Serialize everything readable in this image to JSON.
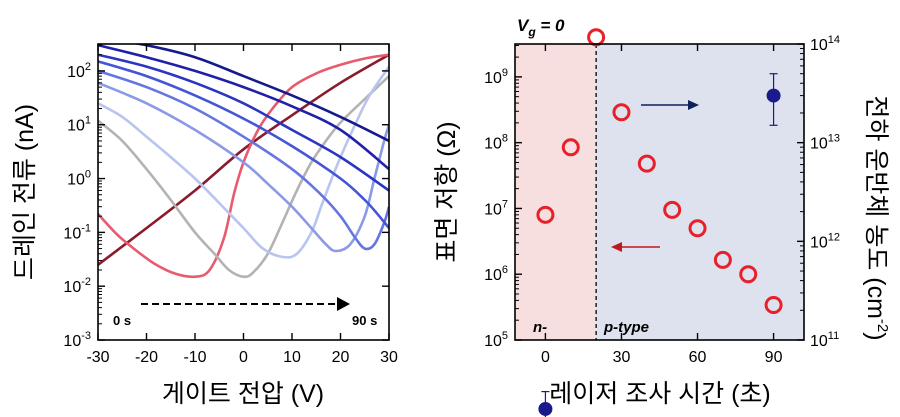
{
  "colors": {
    "n_region": "#f7dfe0",
    "p_region": "#dde2ee",
    "resistance_marker": "#e8202a",
    "density_marker": "#1a1a8c",
    "arrow_red": "#c0181e",
    "arrow_blue": "#10205a"
  },
  "chart_data": [
    {
      "type": "line",
      "title": "",
      "xlabel": "게이트 전압 (V)",
      "ylabel": "드레인 전류 (nA)",
      "xlim": [
        -30,
        30
      ],
      "ylim_log10": [
        -3,
        2.5
      ],
      "xticks": [
        "-30",
        "-20",
        "-10",
        "0",
        "10",
        "20",
        "30"
      ],
      "yticks": [
        {
          "base": "10",
          "exp": "-3",
          "v": -3
        },
        {
          "base": "10",
          "exp": "-2",
          "v": -2
        },
        {
          "base": "10",
          "exp": "-1",
          "v": -1
        },
        {
          "base": "10",
          "exp": "0",
          "v": 0
        },
        {
          "base": "10",
          "exp": "1",
          "v": 1
        },
        {
          "base": "10",
          "exp": "2",
          "v": 2
        }
      ],
      "annotation": {
        "start": "0 s",
        "end": "90 s"
      },
      "series": [
        {
          "color": "#8b1a2a",
          "x": [
            -30,
            -20,
            -10,
            0,
            10,
            20,
            30
          ],
          "y": [
            0.025,
            0.12,
            0.6,
            3.5,
            15,
            60,
            200
          ]
        },
        {
          "color": "#e85a6e",
          "x": [
            -30,
            -26,
            -22,
            -18,
            -14,
            -10,
            -7,
            -4,
            -2,
            0,
            3,
            6,
            10,
            15,
            20,
            25,
            30
          ],
          "y": [
            0.22,
            0.09,
            0.045,
            0.025,
            0.017,
            0.015,
            0.02,
            0.08,
            0.5,
            2,
            8,
            20,
            50,
            90,
            130,
            170,
            200
          ]
        },
        {
          "color": "#b3b3b3",
          "x": [
            -30,
            -25,
            -20,
            -15,
            -10,
            -6,
            -3,
            0,
            2,
            5,
            8,
            11,
            14,
            17,
            20,
            25,
            30
          ],
          "y": [
            12,
            5,
            1.5,
            0.4,
            0.1,
            0.04,
            0.02,
            0.015,
            0.018,
            0.04,
            0.15,
            0.6,
            2,
            5,
            11,
            30,
            80
          ]
        },
        {
          "color": "#b9c4f0",
          "x": [
            -30,
            -25,
            -20,
            -15,
            -10,
            -5,
            0,
            4,
            8,
            11,
            14,
            16,
            18,
            20,
            23,
            26,
            30
          ],
          "y": [
            25,
            14,
            6,
            2.5,
            1,
            0.35,
            0.12,
            0.05,
            0.035,
            0.04,
            0.1,
            0.3,
            0.9,
            2.5,
            10,
            35,
            120
          ]
        },
        {
          "color": "#8a9ae6",
          "x": [
            -30,
            -20,
            -10,
            0,
            5,
            10,
            14,
            17,
            19,
            22,
            25,
            27,
            29,
            30
          ],
          "y": [
            60,
            25,
            8,
            2,
            0.8,
            0.3,
            0.12,
            0.06,
            0.045,
            0.06,
            0.2,
            1,
            5,
            10
          ]
        },
        {
          "color": "#6676e0",
          "x": [
            -30,
            -20,
            -10,
            0,
            10,
            16,
            20,
            23,
            25,
            27,
            29,
            30
          ],
          "y": [
            100,
            50,
            20,
            6,
            1.5,
            0.5,
            0.2,
            0.08,
            0.05,
            0.06,
            0.15,
            0.3
          ]
        },
        {
          "color": "#4455d6",
          "x": [
            -30,
            -20,
            -10,
            0,
            10,
            20,
            25,
            28,
            30
          ],
          "y": [
            150,
            80,
            35,
            13,
            4,
            1,
            0.4,
            0.2,
            0.12
          ]
        },
        {
          "color": "#2a36c2",
          "x": [
            -30,
            -20,
            -10,
            0,
            10,
            20,
            30
          ],
          "y": [
            200,
            120,
            60,
            25,
            8,
            2.5,
            0.6
          ]
        },
        {
          "color": "#2020a8",
          "x": [
            -30,
            -20,
            -10,
            0,
            10,
            20,
            30
          ],
          "y": [
            300,
            180,
            100,
            50,
            22,
            8,
            1.5
          ]
        },
        {
          "color": "#151a8c",
          "x": [
            -30,
            -20,
            -10,
            0,
            10,
            20,
            30
          ],
          "y": [
            420,
            300,
            180,
            80,
            35,
            14,
            5
          ]
        }
      ]
    },
    {
      "type": "scatter",
      "title": "V_g = 0",
      "title_parts": {
        "main": "V",
        "sub": "g",
        "rest": " = 0"
      },
      "xlabel": "레이저 조사 시간 (초)",
      "ylabel_left": "표면 저항 (Ω)",
      "ylabel_right": "전하 운반체 농도 (cm",
      "ylabel_right_sup": "-2",
      "ylabel_right_end": ")",
      "xlim": [
        -12,
        102
      ],
      "xticks": [
        "0",
        "30",
        "60",
        "90"
      ],
      "ylim_left_log10": [
        5,
        9.5
      ],
      "yticks_left": [
        {
          "base": "10",
          "exp": "5",
          "v": 5
        },
        {
          "base": "10",
          "exp": "6",
          "v": 6
        },
        {
          "base": "10",
          "exp": "7",
          "v": 7
        },
        {
          "base": "10",
          "exp": "8",
          "v": 8
        },
        {
          "base": "10",
          "exp": "9",
          "v": 9
        }
      ],
      "ylim_right_log10": [
        11,
        14
      ],
      "yticks_right": [
        {
          "base": "10",
          "exp": "11",
          "v": 11
        },
        {
          "base": "10",
          "exp": "12",
          "v": 12
        },
        {
          "base": "10",
          "exp": "13",
          "v": 13
        },
        {
          "base": "10",
          "exp": "14",
          "v": 14
        }
      ],
      "regions": [
        {
          "label": "n-",
          "x_from": -12,
          "x_to": 20
        },
        {
          "label": "p-type",
          "x_from": 20,
          "x_to": 102
        }
      ],
      "divider_x": 20,
      "resistance": {
        "x": [
          0,
          10,
          20,
          30,
          40,
          50,
          60,
          70,
          80,
          90
        ],
        "y": [
          8000000,
          85000000,
          4000000000,
          290000000,
          48000000,
          9500000,
          5000000,
          1650000,
          1000000,
          340000
        ]
      },
      "carrier_density": [
        {
          "x": 0,
          "y": 20000000000,
          "err_low": 12000000000,
          "err_high": 30000000000
        },
        {
          "x": 90,
          "y": 30000000000000,
          "err_low": 15000000000000,
          "err_high": 50000000000000
        }
      ]
    }
  ]
}
